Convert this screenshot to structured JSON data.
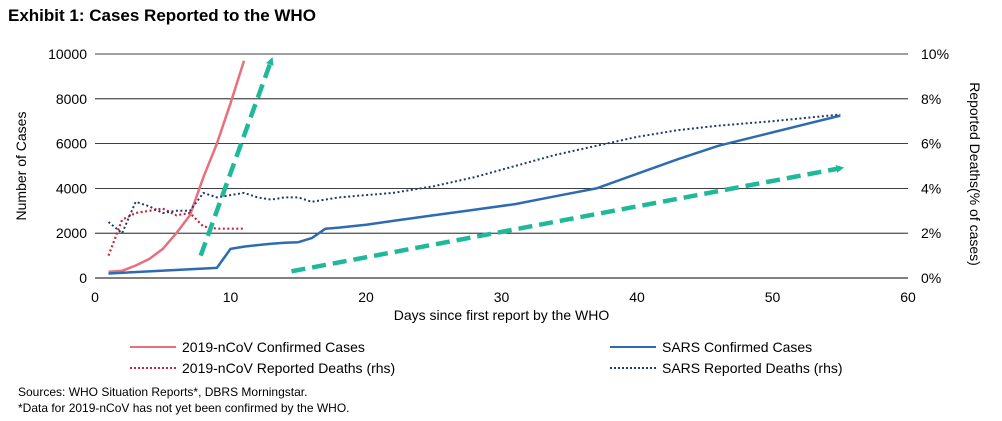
{
  "title": "Exhibit 1: Cases Reported to the WHO",
  "sources": "Sources: WHO Situation Reports*, DBRS Morningstar.",
  "footnote": "*Data for 2019-nCoV has not yet been confirmed by the WHO.",
  "colors": {
    "ncov": "#e8707d",
    "ncov_deaths": "#c0283a",
    "sars": "#2e6bb0",
    "sars_deaths": "#1f3a6e",
    "arrow": "#1fb99a"
  },
  "chart_data": {
    "type": "line",
    "title": "Exhibit 1: Cases Reported to the WHO",
    "xlabel": "Days since first report by the WHO",
    "ylabel": "Number of Cases",
    "y2label": "Reported Deaths(% of cases)",
    "xlim": [
      0,
      60
    ],
    "ylim": [
      0,
      10000
    ],
    "y2lim": [
      0,
      10
    ],
    "x_ticks": [
      "0",
      "10",
      "20",
      "30",
      "40",
      "50",
      "60"
    ],
    "y_ticks": [
      "0",
      "2000",
      "4000",
      "6000",
      "8000",
      "10000"
    ],
    "y2_ticks": [
      "0%",
      "2%",
      "4%",
      "6%",
      "8%",
      "10%"
    ],
    "grid": true,
    "legend_position": "bottom",
    "series": [
      {
        "name": "2019-nCoV Confirmed Cases",
        "axis": "left",
        "style": "solid",
        "x": [
          1,
          2,
          3,
          4,
          5,
          6,
          7,
          8,
          9,
          10,
          11
        ],
        "y": [
          280,
          320,
          560,
          850,
          1300,
          2000,
          2800,
          4500,
          6000,
          7800,
          9700
        ]
      },
      {
        "name": "2019-nCoV Reported Deaths (rhs)",
        "axis": "right",
        "style": "dotted",
        "x": [
          1,
          2,
          3,
          4,
          5,
          6,
          7,
          8,
          9,
          10,
          11
        ],
        "y": [
          1.0,
          2.6,
          2.9,
          3.0,
          3.1,
          2.8,
          2.9,
          2.3,
          2.2,
          2.2,
          2.2
        ]
      },
      {
        "name": "SARS Confirmed Cases",
        "axis": "left",
        "style": "solid",
        "x": [
          1,
          9,
          10,
          11,
          12,
          13,
          14,
          15,
          16,
          17,
          18,
          20,
          22,
          25,
          28,
          31,
          34,
          37,
          40,
          43,
          46,
          50,
          55
        ],
        "y": [
          200,
          450,
          1300,
          1400,
          1470,
          1530,
          1570,
          1600,
          1780,
          2200,
          2250,
          2380,
          2550,
          2800,
          3050,
          3300,
          3650,
          4000,
          4650,
          5300,
          5900,
          6500,
          7250
        ]
      },
      {
        "name": "SARS Reported Deaths (rhs)",
        "axis": "right",
        "style": "dotted",
        "x": [
          1,
          2,
          3,
          4,
          5,
          6,
          7,
          8,
          9,
          10,
          11,
          12,
          13,
          14,
          15,
          16,
          17,
          18,
          20,
          22,
          25,
          28,
          31,
          34,
          37,
          40,
          43,
          46,
          50,
          55
        ],
        "y": [
          2.5,
          2.0,
          3.4,
          3.2,
          2.9,
          3.0,
          3.0,
          3.8,
          3.6,
          3.7,
          3.8,
          3.6,
          3.5,
          3.6,
          3.6,
          3.4,
          3.5,
          3.6,
          3.7,
          3.8,
          4.1,
          4.5,
          5.0,
          5.5,
          5.9,
          6.3,
          6.6,
          6.8,
          7.0,
          7.3
        ]
      }
    ],
    "annotations": [
      {
        "type": "arrow",
        "from": [
          7.8,
          1000
        ],
        "to": [
          13,
          9700
        ]
      },
      {
        "type": "arrow",
        "from": [
          14.5,
          300
        ],
        "to": [
          55,
          4900
        ]
      }
    ]
  }
}
